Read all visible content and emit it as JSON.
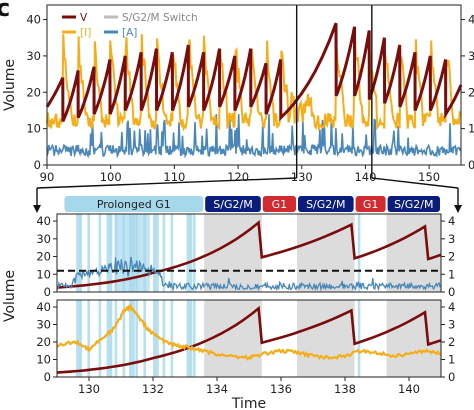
{
  "panel_letter": "c",
  "chart_data": [
    {
      "type": "line",
      "xlim": [
        90,
        155
      ],
      "ylim": [
        0,
        44
      ],
      "y2lim": [
        0,
        4.4
      ],
      "x_ticks": [
        90,
        100,
        110,
        120,
        130,
        140,
        150
      ],
      "y_ticks": [
        0,
        10,
        20,
        30,
        40
      ],
      "y2_ticks": [
        0,
        1,
        2,
        3,
        4
      ],
      "ylabel": "Volume",
      "legend": [
        "V",
        "[I]",
        "S/G2/M Switch",
        "[A]"
      ],
      "legend_position": "top-left",
      "highlight_window": [
        129.2,
        141.0
      ],
      "series": [
        {
          "name": "V",
          "axis": "left",
          "shape": "sawtooth",
          "division_times": [
            92.5,
            94.9,
            97.4,
            99.9,
            102.3,
            104.8,
            107.2,
            109.7,
            112.2,
            114.6,
            117.1,
            119.5,
            122.0,
            124.4,
            126.7,
            135.4,
            138.3,
            140.6,
            143.0,
            145.4,
            147.8,
            150.2,
            152.6
          ],
          "division_peaks": [
            24,
            26,
            27,
            29,
            30,
            31,
            32,
            31,
            33,
            31,
            32,
            30,
            32,
            28,
            29,
            39,
            38,
            37,
            35,
            33,
            31,
            30,
            29
          ],
          "troughs": [
            12,
            13,
            14,
            14,
            15,
            15,
            15,
            15,
            16,
            15,
            16,
            15,
            16,
            14,
            13,
            19,
            19,
            18,
            17,
            16,
            15,
            15,
            14
          ]
        },
        {
          "name": "[I]",
          "axis": "right",
          "values_range": [
            0.6,
            3.6
          ]
        },
        {
          "name": "[A]",
          "axis": "right",
          "values_range": [
            0.0,
            1.4
          ]
        }
      ]
    },
    {
      "type": "line",
      "xlim": [
        129,
        141
      ],
      "ylim": [
        0,
        44
      ],
      "y2lim": [
        0,
        4.4
      ],
      "y_ticks": [
        0,
        10,
        20,
        30,
        40
      ],
      "y2_ticks": [
        0,
        1,
        2,
        3,
        4
      ],
      "threshold": 12,
      "phase_bar": [
        {
          "label": "Prolonged G1",
          "start": 129.2,
          "end": 133.6,
          "color": "#a6d8ec"
        },
        {
          "label": "S/G2/M",
          "start": 133.6,
          "end": 135.4,
          "color": "#0b1d7a"
        },
        {
          "label": "G1",
          "start": 135.4,
          "end": 136.5,
          "color": "#d12a2f"
        },
        {
          "label": "S/G2/M",
          "start": 136.5,
          "end": 138.3,
          "color": "#0b1d7a"
        },
        {
          "label": "G1",
          "start": 138.3,
          "end": 139.3,
          "color": "#d12a2f"
        },
        {
          "label": "S/G2/M",
          "start": 139.3,
          "end": 141.0,
          "color": "#0b1d7a"
        }
      ],
      "grey_bands": [
        [
          133.6,
          135.4
        ],
        [
          136.5,
          138.3
        ],
        [
          139.3,
          141.0
        ]
      ],
      "series": [
        {
          "name": "V",
          "points": [
            [
              129.0,
              2.5
            ],
            [
              132.0,
              10.8
            ],
            [
              135.3,
              39.2
            ],
            [
              135.4,
              19.6
            ],
            [
              138.2,
              38.0
            ],
            [
              138.3,
              19.0
            ],
            [
              140.5,
              37.0
            ],
            [
              140.6,
              18.6
            ],
            [
              141.0,
              21.0
            ]
          ]
        },
        {
          "name": "[A]",
          "values_range": [
            0.0,
            2.2
          ]
        }
      ]
    },
    {
      "type": "line",
      "xlim": [
        129,
        141
      ],
      "ylim": [
        0,
        44
      ],
      "y2lim": [
        0,
        4.4
      ],
      "x_ticks": [
        130,
        132,
        134,
        136,
        138,
        140
      ],
      "y_ticks": [
        0,
        10,
        20,
        30,
        40
      ],
      "y2_ticks": [
        0,
        1,
        2,
        3,
        4
      ],
      "xlabel": "Time",
      "grey_bands": [
        [
          133.6,
          135.4
        ],
        [
          136.5,
          138.3
        ],
        [
          139.3,
          141.0
        ]
      ],
      "series": [
        {
          "name": "V",
          "points": [
            [
              129.0,
              2.5
            ],
            [
              132.0,
              10.8
            ],
            [
              135.3,
              39.2
            ],
            [
              135.4,
              19.6
            ],
            [
              138.2,
              38.0
            ],
            [
              138.3,
              19.0
            ],
            [
              140.5,
              37.0
            ],
            [
              140.6,
              18.6
            ],
            [
              141.0,
              21.0
            ]
          ]
        },
        {
          "name": "[I]",
          "points": [
            [
              129.0,
              1.8
            ],
            [
              129.6,
              2.0
            ],
            [
              130.0,
              1.6
            ],
            [
              130.4,
              2.2
            ],
            [
              130.8,
              2.8
            ],
            [
              131.1,
              3.8
            ],
            [
              131.3,
              4.0
            ],
            [
              131.6,
              3.3
            ],
            [
              131.9,
              2.6
            ],
            [
              132.3,
              2.1
            ],
            [
              132.7,
              1.8
            ],
            [
              133.1,
              1.7
            ],
            [
              133.5,
              1.5
            ],
            [
              134.0,
              1.3
            ],
            [
              134.5,
              1.2
            ],
            [
              135.0,
              1.1
            ],
            [
              135.4,
              1.3
            ],
            [
              136.0,
              1.5
            ],
            [
              136.5,
              1.4
            ],
            [
              137.0,
              1.2
            ],
            [
              137.5,
              1.1
            ],
            [
              138.0,
              1.2
            ],
            [
              138.5,
              1.5
            ],
            [
              139.0,
              1.4
            ],
            [
              139.5,
              1.2
            ],
            [
              140.0,
              1.3
            ],
            [
              140.5,
              1.5
            ],
            [
              141.0,
              1.3
            ]
          ]
        }
      ]
    }
  ]
}
